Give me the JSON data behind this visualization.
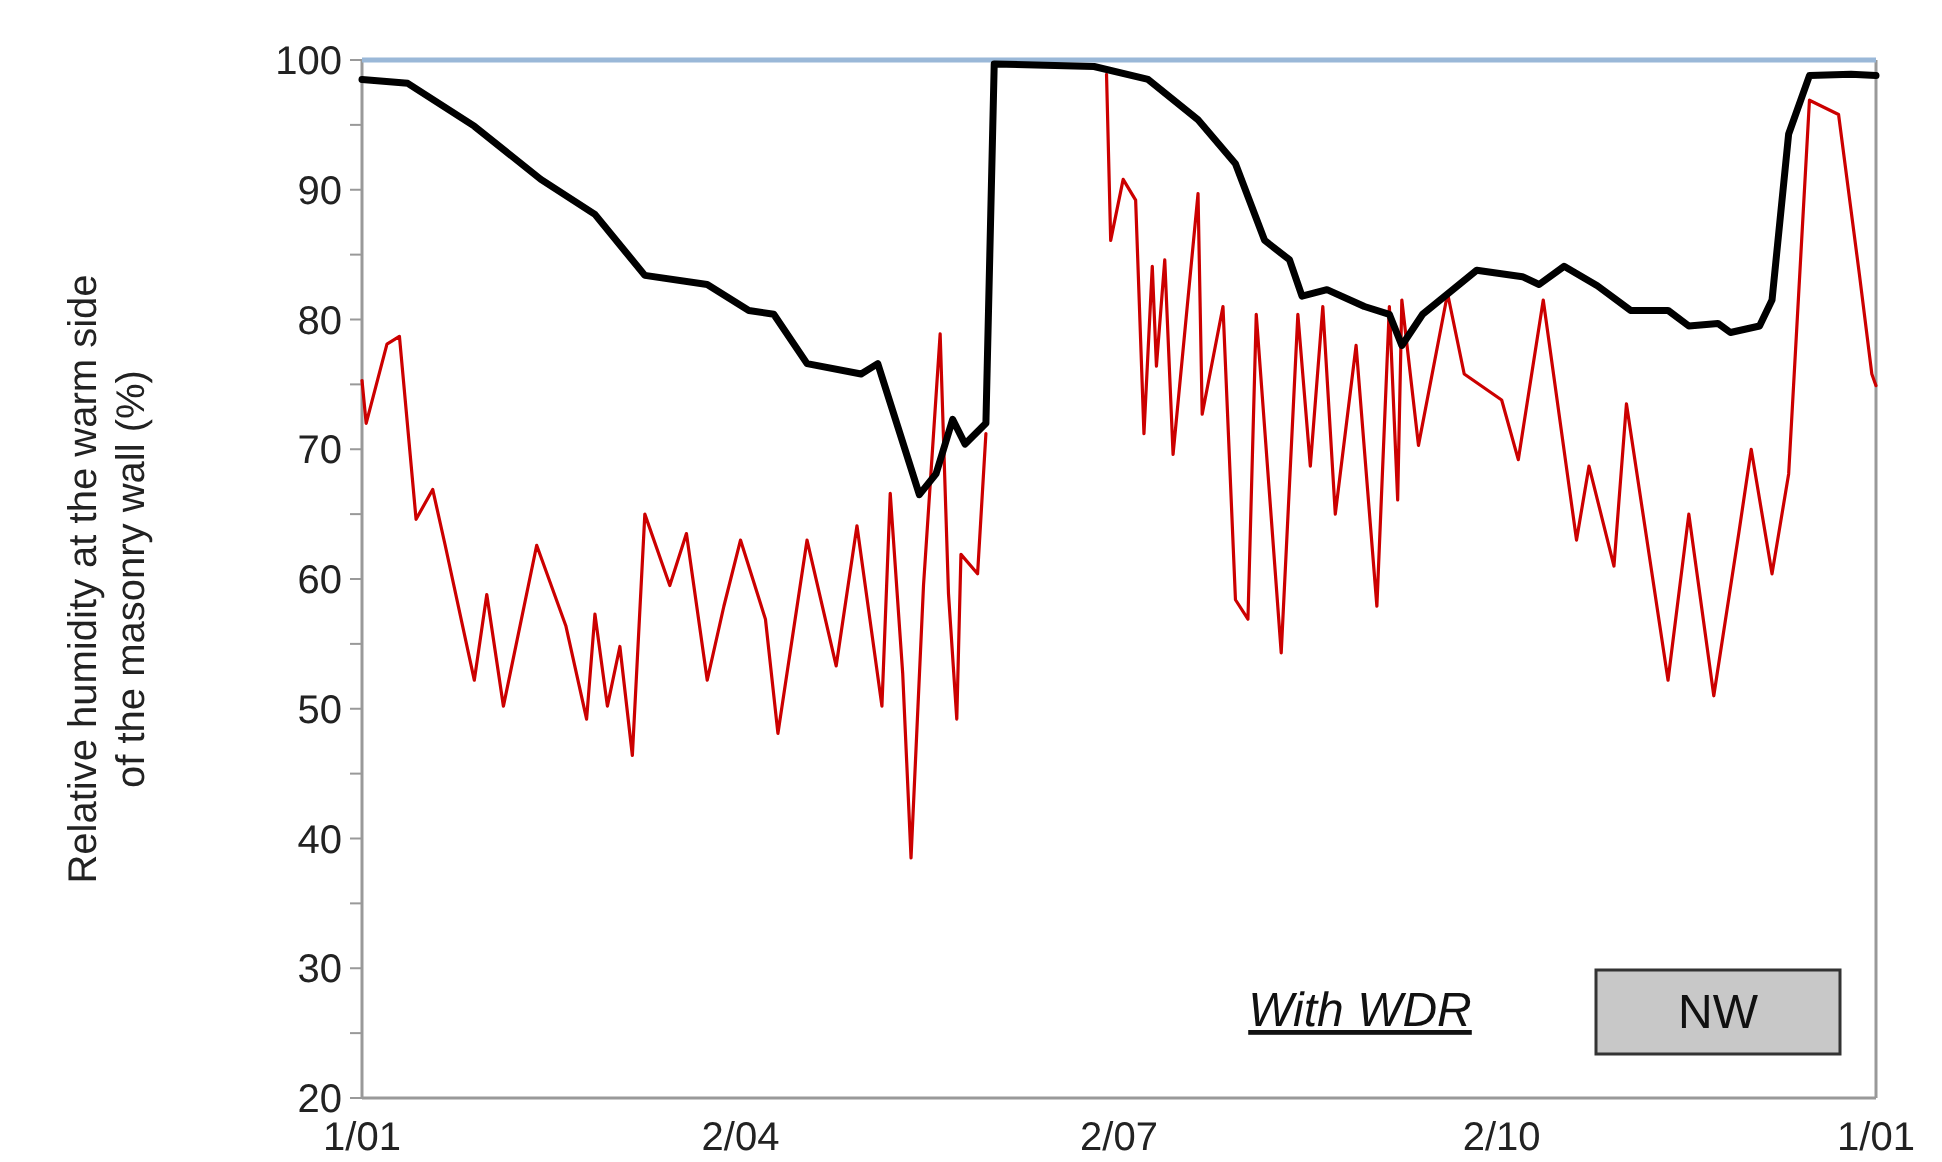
{
  "chart_data": {
    "type": "line",
    "ylabel": "Relative humidity at the warm side\nof the masonry wall (%)",
    "xlim": [
      "--01-01",
      "--12-31"
    ],
    "xticks": [
      {
        "value": "--01-01",
        "label": "1/01"
      },
      {
        "value": "--04-02",
        "label": "2/04"
      },
      {
        "value": "--07-02",
        "label": "2/07"
      },
      {
        "value": "--10-02",
        "label": "2/10"
      },
      {
        "value": "--12-31",
        "label": "1/01"
      }
    ],
    "ylim": [
      20,
      100
    ],
    "yticks": [
      20,
      {
        "value": 25,
        "label": null
      },
      30,
      {
        "value": 35,
        "label": null
      },
      40,
      {
        "value": 45,
        "label": null
      },
      50,
      {
        "value": 55,
        "label": null
      },
      60,
      {
        "value": 65,
        "label": null
      },
      70,
      {
        "value": 75,
        "label": null
      },
      80,
      {
        "value": 85,
        "label": null
      },
      90,
      {
        "value": 95,
        "label": null
      },
      100
    ],
    "grid": false,
    "marker": "none",
    "line_style": "solid",
    "ref_lines": [
      {
        "axis": "y",
        "value": 100,
        "color": "#9ab8d8"
      }
    ],
    "annotations": [
      "With WDR",
      "NW"
    ],
    "series": [
      {
        "color": "#cc0000",
        "x": [
          "--01-01",
          "--01-02",
          "--01-07",
          "--01-10",
          "--01-14",
          "--01-18",
          "--01-21",
          "--01-28",
          "--01-31",
          "--02-04",
          "--02-12",
          "--02-19",
          "--02-24",
          "--02-26",
          "--03-01",
          "--03-04",
          "--03-07",
          "--03-10",
          "--03-16",
          "--03-20",
          "--03-25",
          "--03-29",
          "--04-02",
          "--04-08",
          "--04-11",
          "--04-18",
          "--04-25",
          "--04-30",
          "--05-06",
          "--05-08",
          "--05-11",
          "--05-13",
          "--05-16",
          "--05-20",
          "--05-22",
          "--05-24",
          "--05-25",
          "--05-29",
          "--05-31",
          "--06-01",
          "--06-29",
          "--06-30",
          "--07-03",
          "--07-06",
          "--07-08",
          "--07-10",
          "--07-11",
          "--07-13",
          "--07-15",
          "--07-21",
          "--07-22",
          "--07-27",
          "--07-30",
          "--08-02",
          "--08-04",
          "--08-10",
          "--08-14",
          "--08-17",
          "--08-20",
          "--08-23",
          "--08-28",
          "--09-02",
          "--09-05",
          "--09-07",
          "--09-08",
          "--09-12",
          "--09-19",
          "--09-23",
          "--10-02",
          "--10-06",
          "--10-12",
          "--10-20",
          "--10-23",
          "--10-29",
          "--11-01",
          "--11-11",
          "--11-16",
          "--11-22",
          "--11-28",
          "--12-01",
          "--12-06",
          "--12-10",
          "--12-15",
          "--12-22",
          "--12-27",
          "--12-30",
          "--12-31"
        ],
        "values": [
          75.3,
          72,
          78.1,
          78.7,
          64.6,
          66.9,
          62.6,
          52.2,
          58.8,
          50.2,
          62.6,
          56.4,
          49.2,
          57.3,
          50.2,
          54.8,
          46.4,
          65,
          59.5,
          63.5,
          52.2,
          57.9,
          63,
          56.9,
          48.1,
          63,
          53.3,
          64.1,
          50.2,
          66.6,
          52.7,
          38.5,
          59.5,
          78.9,
          58.9,
          49.2,
          61.9,
          60.4,
          71.2,
          null,
          98.9,
          86.1,
          90.8,
          89.2,
          71.2,
          84.1,
          76.4,
          84.6,
          69.6,
          89.7,
          72.7,
          81,
          58.4,
          56.9,
          80.4,
          54.3,
          80.4,
          68.7,
          81,
          65,
          78,
          57.9,
          81,
          66.1,
          81.5,
          70.3,
          82,
          75.8,
          73.8,
          69.2,
          81.5,
          63,
          68.7,
          61,
          73.5,
          52.2,
          65,
          51,
          63.5,
          70,
          60.4,
          68.1,
          96.9,
          95.8,
          83.5,
          75.8,
          74.9
        ]
      },
      {
        "color": "#000000",
        "x": [
          "--01-01",
          "--01-12",
          "--01-28",
          "--02-13",
          "--02-26",
          "--03-10",
          "--03-25",
          "--04-04",
          "--04-10",
          "--04-18",
          "--05-01",
          "--05-05",
          "--05-15",
          "--05-19",
          "--05-23",
          "--05-26",
          "--05-31",
          "--06-02",
          "--06-26",
          "--07-09",
          "--07-21",
          "--07-30",
          "--08-06",
          "--08-12",
          "--08-15",
          "--08-21",
          "--08-30",
          "--09-05",
          "--09-08",
          "--09-13",
          "--09-26",
          "--10-07",
          "--10-11",
          "--10-17",
          "--10-25",
          "--11-02",
          "--11-11",
          "--11-16",
          "--11-23",
          "--11-26",
          "--12-03",
          "--12-06",
          "--12-10",
          "--12-15",
          "--12-25",
          "--12-31"
        ],
        "values": [
          98.5,
          98.2,
          94.9,
          90.8,
          88.1,
          83.4,
          82.7,
          80.7,
          80.4,
          76.6,
          75.8,
          76.6,
          66.5,
          68.1,
          72.3,
          70.4,
          72,
          99.7,
          99.5,
          98.5,
          95.4,
          92,
          86.1,
          84.6,
          81.8,
          82.3,
          81,
          80.4,
          78,
          80.4,
          83.8,
          83.3,
          82.7,
          84.1,
          82.6,
          80.7,
          80.7,
          79.5,
          79.7,
          79,
          79.5,
          81.5,
          94.3,
          98.8,
          98.9,
          98.8
        ]
      }
    ]
  }
}
